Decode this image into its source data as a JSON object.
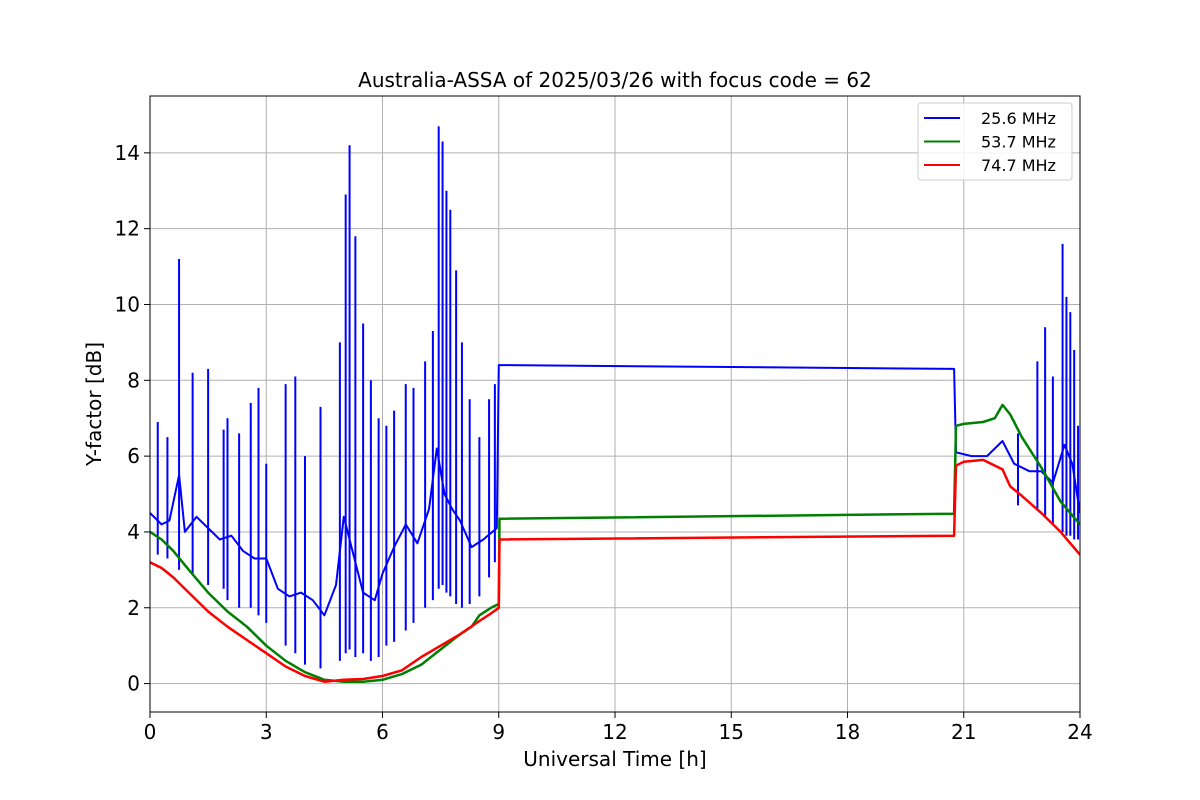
{
  "chart_data": {
    "type": "line",
    "title": "Australia-ASSA of 2025/03/26 with focus code = 62",
    "xlabel": "Universal Time [h]",
    "ylabel": "Y-factor [dB]",
    "xlim": [
      0,
      24
    ],
    "ylim": [
      -0.75,
      15.5
    ],
    "xticks": [
      0,
      3,
      6,
      9,
      12,
      15,
      18,
      21,
      24
    ],
    "yticks": [
      0,
      2,
      4,
      6,
      8,
      10,
      12,
      14
    ],
    "grid": true,
    "legend_position": "top-right",
    "series": [
      {
        "name": "25.6 MHz",
        "color": "#0000ff",
        "x": [
          0.0,
          0.3,
          0.5,
          0.75,
          0.9,
          1.2,
          1.5,
          1.8,
          2.1,
          2.4,
          2.7,
          3.0,
          3.3,
          3.6,
          3.9,
          4.2,
          4.5,
          4.8,
          5.0,
          5.2,
          5.5,
          5.8,
          6.0,
          6.3,
          6.6,
          6.9,
          7.2,
          7.4,
          7.6,
          7.8,
          8.0,
          8.3,
          8.6,
          8.95,
          9.0,
          20.75,
          20.8,
          21.2,
          21.6,
          22.0,
          22.3,
          22.7,
          23.0,
          23.3,
          23.6,
          23.8,
          24.0
        ],
        "y": [
          4.5,
          4.2,
          4.3,
          5.5,
          4.0,
          4.4,
          4.1,
          3.8,
          3.9,
          3.5,
          3.3,
          3.3,
          2.5,
          2.3,
          2.4,
          2.2,
          1.8,
          2.6,
          4.4,
          3.6,
          2.4,
          2.2,
          2.9,
          3.6,
          4.2,
          3.7,
          4.6,
          6.2,
          5.0,
          4.6,
          4.3,
          3.6,
          3.8,
          4.1,
          8.4,
          8.3,
          6.1,
          6.0,
          6.0,
          6.4,
          5.8,
          5.6,
          5.6,
          5.3,
          6.3,
          5.8,
          4.5
        ]
      },
      {
        "name": "53.7 MHz",
        "color": "#008000",
        "x": [
          0.0,
          0.3,
          0.6,
          1.0,
          1.5,
          2.0,
          2.5,
          3.0,
          3.5,
          4.0,
          4.5,
          5.0,
          5.5,
          6.0,
          6.5,
          7.0,
          7.5,
          8.0,
          8.3,
          8.5,
          8.8,
          9.0,
          9.02,
          20.75,
          20.8,
          21.0,
          21.5,
          21.8,
          22.0,
          22.2,
          22.5,
          23.0,
          23.5,
          24.0
        ],
        "y": [
          4.0,
          3.8,
          3.5,
          3.0,
          2.4,
          1.9,
          1.5,
          1.0,
          0.6,
          0.3,
          0.1,
          0.05,
          0.05,
          0.1,
          0.25,
          0.5,
          0.9,
          1.3,
          1.5,
          1.8,
          2.0,
          2.1,
          4.35,
          4.48,
          6.8,
          6.85,
          6.9,
          7.0,
          7.35,
          7.1,
          6.5,
          5.7,
          4.8,
          4.2
        ]
      },
      {
        "name": "74.7 MHz",
        "color": "#ff0000",
        "x": [
          0.0,
          0.3,
          0.6,
          1.0,
          1.5,
          2.0,
          2.5,
          3.0,
          3.5,
          4.0,
          4.5,
          5.0,
          5.5,
          6.0,
          6.5,
          7.0,
          7.5,
          8.0,
          8.5,
          8.8,
          9.0,
          9.02,
          20.75,
          20.8,
          21.0,
          21.5,
          21.8,
          22.0,
          22.2,
          22.5,
          23.0,
          23.5,
          24.0
        ],
        "y": [
          3.2,
          3.05,
          2.8,
          2.4,
          1.9,
          1.5,
          1.15,
          0.8,
          0.45,
          0.2,
          0.05,
          0.1,
          0.12,
          0.2,
          0.35,
          0.7,
          1.0,
          1.3,
          1.65,
          1.85,
          2.0,
          3.8,
          3.9,
          5.75,
          5.85,
          5.9,
          5.75,
          5.65,
          5.2,
          4.95,
          4.5,
          4.0,
          3.4
        ]
      }
    ],
    "spikes": {
      "series": "25.6 MHz",
      "x": [
        0.2,
        0.45,
        0.75,
        1.1,
        1.5,
        1.9,
        2.0,
        2.3,
        2.6,
        2.8,
        3.0,
        3.5,
        3.75,
        4.0,
        4.4,
        4.9,
        5.05,
        5.15,
        5.3,
        5.5,
        5.7,
        5.9,
        6.1,
        6.3,
        6.6,
        6.8,
        7.1,
        7.3,
        7.45,
        7.55,
        7.65,
        7.75,
        7.9,
        8.05,
        8.25,
        8.5,
        8.75,
        8.9,
        22.4,
        22.9,
        23.1,
        23.3,
        23.55,
        23.65,
        23.75,
        23.85,
        23.95
      ],
      "top": [
        6.9,
        6.5,
        11.2,
        8.2,
        8.3,
        6.7,
        7.0,
        6.6,
        7.4,
        7.8,
        5.8,
        7.9,
        8.1,
        6.0,
        7.3,
        9.0,
        12.9,
        14.2,
        11.8,
        9.5,
        8.0,
        7.0,
        6.8,
        7.2,
        7.9,
        7.8,
        8.5,
        9.3,
        14.7,
        14.3,
        13.0,
        12.5,
        10.9,
        9.0,
        7.5,
        6.5,
        7.5,
        7.9,
        6.6,
        8.5,
        9.4,
        8.1,
        11.6,
        10.2,
        9.8,
        8.8,
        6.8
      ],
      "bottom": [
        3.4,
        3.3,
        3.0,
        2.9,
        2.6,
        2.5,
        2.2,
        2.0,
        2.0,
        1.8,
        1.6,
        1.0,
        0.8,
        0.5,
        0.4,
        0.6,
        0.8,
        0.9,
        0.7,
        0.8,
        0.6,
        0.7,
        1.0,
        1.1,
        1.4,
        1.6,
        2.0,
        2.2,
        2.5,
        2.6,
        2.4,
        2.3,
        2.1,
        2.0,
        2.1,
        2.3,
        2.8,
        3.2,
        4.7,
        4.6,
        4.4,
        4.2,
        4.0,
        3.9,
        3.9,
        3.8,
        3.8
      ]
    }
  }
}
